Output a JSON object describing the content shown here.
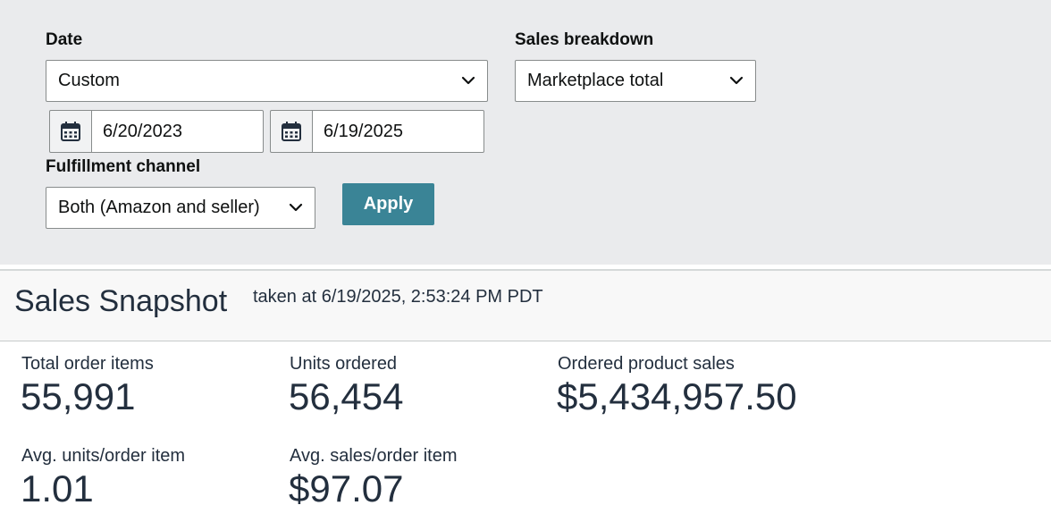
{
  "filters": {
    "date_label": "Date",
    "date_select": "Custom",
    "start_date": "6/20/2023",
    "end_date": "6/19/2025",
    "sales_breakdown_label": "Sales breakdown",
    "sales_breakdown_select": "Marketplace total",
    "fulfillment_label": "Fulfillment channel",
    "fulfillment_select": "Both (Amazon and seller)",
    "apply_label": "Apply"
  },
  "snapshot": {
    "title": "Sales Snapshot",
    "taken_at": "taken at 6/19/2025, 2:53:24 PM PDT",
    "metrics": [
      {
        "label": "Total order items",
        "value": "55,991"
      },
      {
        "label": "Units ordered",
        "value": "56,454"
      },
      {
        "label": "Ordered product sales",
        "value": "$5,434,957.50"
      },
      {
        "label": "Avg. units/order item",
        "value": "1.01"
      },
      {
        "label": "Avg. sales/order item",
        "value": "$97.07"
      }
    ]
  },
  "colors": {
    "filter_bg": "#eaebed",
    "apply_button": "#3a8496",
    "text": "#232f3e"
  },
  "icons": [
    "chevron-down-icon",
    "calendar-icon"
  ]
}
